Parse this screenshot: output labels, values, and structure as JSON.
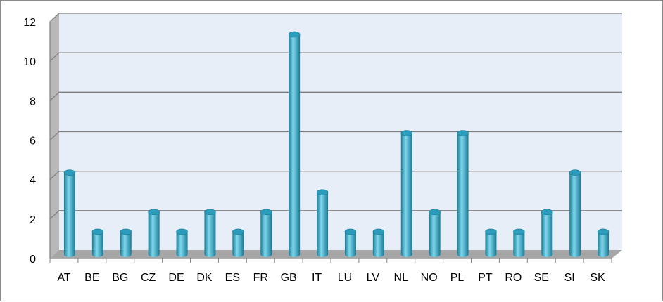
{
  "chart_data": {
    "type": "bar",
    "title": "",
    "xlabel": "",
    "ylabel": "",
    "categories": [
      "AT",
      "BE",
      "BG",
      "CZ",
      "DE",
      "DK",
      "ES",
      "FR",
      "GB",
      "IT",
      "LU",
      "LV",
      "NL",
      "NO",
      "PL",
      "PT",
      "RO",
      "SE",
      "SI",
      "SK"
    ],
    "values": [
      4,
      1,
      1,
      2,
      1,
      2,
      1,
      2,
      11,
      3,
      1,
      1,
      6,
      2,
      6,
      1,
      1,
      2,
      4,
      1
    ],
    "ylim": [
      0,
      12
    ],
    "yticks": [
      0,
      2,
      4,
      6,
      8,
      10,
      12
    ],
    "grid": true,
    "legend": "none",
    "style": "3d-cylinder",
    "colors": {
      "bar_light": "#7fd8ec",
      "bar_mid": "#38b4d4",
      "bar_dark": "#1a7a96",
      "bar_top": "#2c9cbc",
      "plot_back": "#e8eef8",
      "plot_floor": "#a6a6a6",
      "side_wall": "#b8b8b8",
      "gridline": "#7f7f7f"
    }
  }
}
